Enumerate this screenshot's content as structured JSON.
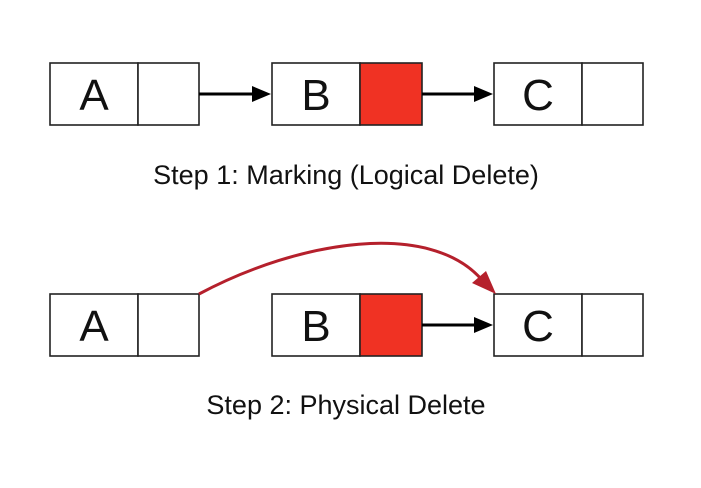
{
  "colors": {
    "marked_next_field": "#f03223",
    "relinked_pointer": "#b5202c",
    "pointer": "#000000"
  },
  "step1": {
    "nodes": [
      {
        "key": "A",
        "marked": false
      },
      {
        "key": "B",
        "marked": true
      },
      {
        "key": "C",
        "marked": false
      }
    ],
    "caption": "Step 1: Marking (Logical Delete)"
  },
  "step2": {
    "nodes": [
      {
        "key": "A",
        "marked": false
      },
      {
        "key": "B",
        "marked": true
      },
      {
        "key": "C",
        "marked": false
      }
    ],
    "caption": "Step 2: Physical Delete"
  }
}
